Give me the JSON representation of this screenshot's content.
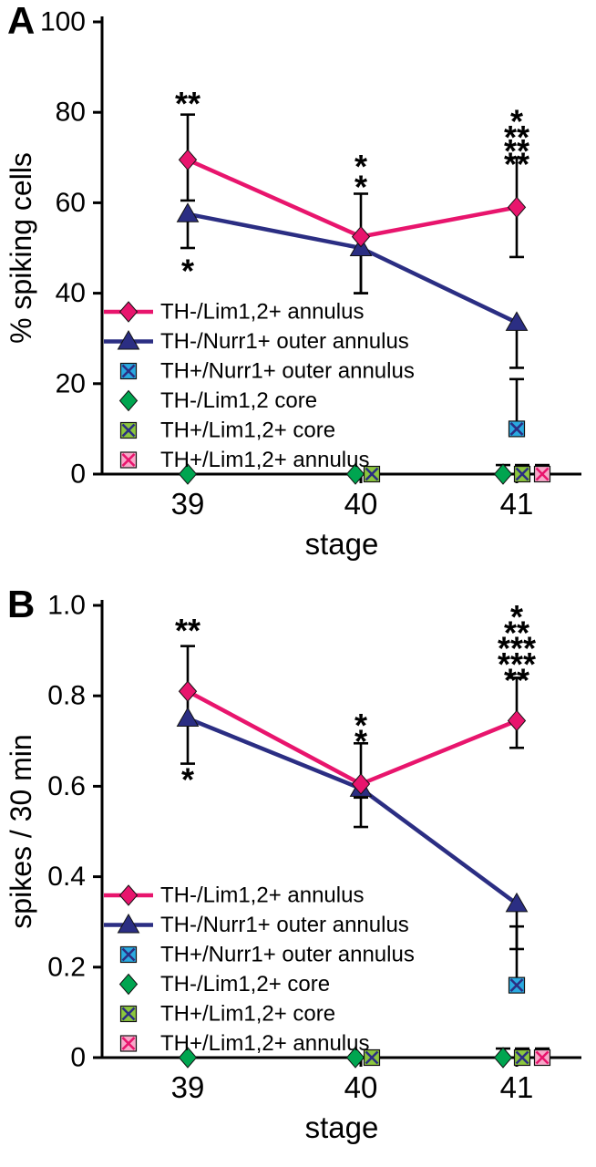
{
  "palette": {
    "pink": "#E8156D",
    "navy": "#2B2E83",
    "blue": "#2AA9E0",
    "green": "#00A550",
    "light_green": "#8CC63E",
    "light_pink": "#F7A8C9",
    "axis": "#000000",
    "background": "#FFFFFF"
  },
  "chart_data": [
    {
      "type": "line",
      "label": "A",
      "xlabel": "stage",
      "ylabel": "% spiking cells",
      "ylim": [
        0,
        100
      ],
      "grid": false,
      "legend_position": "inside-left-lower",
      "xticks": [
        {
          "v": 39,
          "label": "39"
        },
        {
          "v": 40,
          "label": "40"
        },
        {
          "v": 41,
          "label": "41"
        }
      ],
      "yticks": [
        {
          "v": 0,
          "label": "0"
        },
        {
          "v": 20,
          "label": "20"
        },
        {
          "v": 40,
          "label": "40"
        },
        {
          "v": 60,
          "label": "60"
        },
        {
          "v": 80,
          "label": "80"
        },
        {
          "v": 100,
          "label": "100"
        }
      ],
      "series": [
        {
          "name": "TH-/Lim1,2+ annulus",
          "color": "pink",
          "marker": "diamond",
          "line": true,
          "points": [
            {
              "x": 39,
              "y": 69.5,
              "err_up": 10,
              "err_down": 9
            },
            {
              "x": 40,
              "y": 52.5,
              "err_up": 9.5,
              "err_down": 12.5
            },
            {
              "x": 41,
              "y": 59,
              "err_up": 11,
              "err_down": 11
            }
          ]
        },
        {
          "name": "TH-/Nurr1+ outer annulus",
          "color": "navy",
          "marker": "triangle",
          "line": true,
          "points": [
            {
              "x": 39,
              "y": 57.5,
              "err_down": 7.5
            },
            {
              "x": 40,
              "y": 50,
              "err_down": 10
            },
            {
              "x": 41,
              "y": 33.5,
              "err_down": 10
            }
          ]
        },
        {
          "name": "TH+/Nurr1+ outer annulus",
          "color": "blue",
          "marker": "square-cross",
          "cross": "navy",
          "line": false,
          "points": [
            {
              "x": 41,
              "y": 10,
              "err_up": 11
            }
          ]
        },
        {
          "name": "TH-/Lim1,2 core",
          "color": "green",
          "marker": "diamond",
          "line": false,
          "points": [
            {
              "x": 39,
              "y": 0,
              "dx": 0
            },
            {
              "x": 40,
              "y": 0,
              "dx": -6
            },
            {
              "x": 41,
              "y": 0,
              "dx": -15,
              "err_up": 2
            }
          ]
        },
        {
          "name": "TH+/Lim1,2+ core",
          "color": "light_green",
          "marker": "square-cross",
          "cross": "navy",
          "line": false,
          "points": [
            {
              "x": 40,
              "y": 0,
              "dx": 12
            },
            {
              "x": 41,
              "y": 0,
              "dx": 6,
              "err_up": 2
            }
          ]
        },
        {
          "name": "TH+/Lim1,2+ annulus",
          "color": "light_pink",
          "marker": "square-cross",
          "cross": "pink",
          "line": false,
          "points": [
            {
              "x": 41,
              "y": 0,
              "dx": 28,
              "err_up": 2
            }
          ]
        }
      ],
      "annotations": [
        {
          "x": 39,
          "y": 82,
          "text": "**",
          "color": "green"
        },
        {
          "x": 39,
          "y": 45,
          "text": "*",
          "color": "green"
        },
        {
          "x": 40,
          "y": 68,
          "text": "*",
          "color": "light_green"
        },
        {
          "x": 40,
          "y": 63.5,
          "text": "*",
          "color": "green"
        },
        {
          "x": 41,
          "y": 78,
          "text": "*",
          "color": "blue"
        },
        {
          "x": 41,
          "y": 74.5,
          "text": "**",
          "color": "light_pink"
        },
        {
          "x": 41,
          "y": 71.5,
          "text": "**",
          "color": "light_green"
        },
        {
          "x": 41,
          "y": 68.5,
          "text": "**",
          "color": "green"
        }
      ]
    },
    {
      "type": "line",
      "label": "B",
      "xlabel": "stage",
      "ylabel": "spikes / 30 min",
      "ylim": [
        0,
        1.0
      ],
      "grid": false,
      "legend_position": "inside-left-lower",
      "xticks": [
        {
          "v": 39,
          "label": "39"
        },
        {
          "v": 40,
          "label": "40"
        },
        {
          "v": 41,
          "label": "41"
        }
      ],
      "yticks": [
        {
          "v": 0,
          "label": "0"
        },
        {
          "v": 0.2,
          "label": "0.2"
        },
        {
          "v": 0.4,
          "label": "0.4"
        },
        {
          "v": 0.6,
          "label": "0.6"
        },
        {
          "v": 0.8,
          "label": "0.8"
        },
        {
          "v": 1.0,
          "label": "1.0"
        }
      ],
      "series": [
        {
          "name": "TH-/Lim1,2+ annulus",
          "color": "pink",
          "marker": "diamond",
          "line": true,
          "points": [
            {
              "x": 39,
              "y": 0.81,
              "err_up": 0.1,
              "err_down": 0.065
            },
            {
              "x": 40,
              "y": 0.605,
              "err_up": 0.09,
              "err_down": 0.03
            },
            {
              "x": 41,
              "y": 0.745,
              "err_up": 0.095,
              "err_down": 0.06
            }
          ]
        },
        {
          "name": "TH-/Nurr1+ outer annulus",
          "color": "navy",
          "marker": "triangle",
          "line": true,
          "points": [
            {
              "x": 39,
              "y": 0.75,
              "err_down": 0.1
            },
            {
              "x": 40,
              "y": 0.595,
              "err_down": 0.085
            },
            {
              "x": 41,
              "y": 0.34,
              "err_down": 0.1
            }
          ]
        },
        {
          "name": "TH+/Nurr1+ outer annulus",
          "color": "blue",
          "marker": "square-cross",
          "cross": "navy",
          "line": false,
          "points": [
            {
              "x": 41,
              "y": 0.16,
              "err_up": 0.13
            }
          ]
        },
        {
          "name": "TH-/Lim1,2+ core",
          "color": "green",
          "marker": "diamond",
          "line": false,
          "points": [
            {
              "x": 39,
              "y": 0,
              "dx": 0
            },
            {
              "x": 40,
              "y": 0,
              "dx": -6
            },
            {
              "x": 41,
              "y": 0,
              "dx": -15,
              "err_up": 0.02
            }
          ]
        },
        {
          "name": "TH+/Lim1,2+ core",
          "color": "light_green",
          "marker": "square-cross",
          "cross": "navy",
          "line": false,
          "points": [
            {
              "x": 40,
              "y": 0,
              "dx": 12
            },
            {
              "x": 41,
              "y": 0,
              "dx": 6,
              "err_up": 0.02
            }
          ]
        },
        {
          "name": "TH+/Lim1,2+ annulus",
          "color": "light_pink",
          "marker": "square-cross",
          "cross": "pink",
          "line": false,
          "points": [
            {
              "x": 41,
              "y": 0,
              "dx": 28,
              "err_up": 0.02
            }
          ]
        }
      ],
      "annotations": [
        {
          "x": 39,
          "y": 0.945,
          "text": "**",
          "color": "green"
        },
        {
          "x": 39,
          "y": 0.615,
          "text": "*",
          "color": "green"
        },
        {
          "x": 40,
          "y": 0.735,
          "text": "*",
          "color": "light_green"
        },
        {
          "x": 40,
          "y": 0.7,
          "text": "*",
          "color": "green"
        },
        {
          "x": 41,
          "y": 0.975,
          "text": "*",
          "color": "navy"
        },
        {
          "x": 41,
          "y": 0.94,
          "text": "**",
          "color": "blue"
        },
        {
          "x": 41,
          "y": 0.905,
          "text": "***",
          "color": "light_pink"
        },
        {
          "x": 41,
          "y": 0.87,
          "text": "***",
          "color": "light_green"
        },
        {
          "x": 41,
          "y": 0.835,
          "text": "**",
          "color": "green"
        }
      ]
    }
  ]
}
